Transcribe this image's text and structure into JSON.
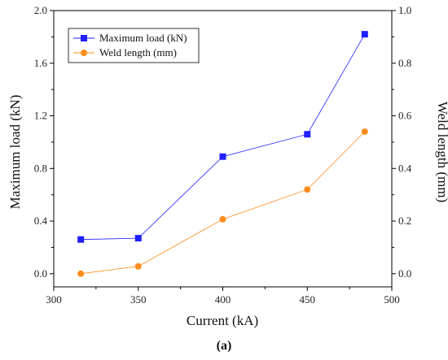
{
  "chart_data": {
    "type": "line",
    "xlabel": "Current (kA)",
    "ylabel_left": "Maximum load (kN)",
    "ylabel_right": "Weld length (mm)",
    "xlim": [
      300,
      500
    ],
    "ylim_left": [
      -0.1,
      2.0
    ],
    "ylim_right": [
      -0.05,
      1.0
    ],
    "x_ticks": [
      300,
      350,
      400,
      450,
      500
    ],
    "x_tick_labels": [
      "300",
      "350",
      "400",
      "450",
      "500"
    ],
    "y_left_ticks": [
      0.0,
      0.4,
      0.8,
      1.2,
      1.6,
      2.0
    ],
    "y_left_tick_labels": [
      "0.0",
      "0.4",
      "0.8",
      "1.2",
      "1.6",
      "2.0"
    ],
    "y_right_ticks": [
      0.0,
      0.2,
      0.4,
      0.6,
      0.8,
      1.0
    ],
    "y_right_tick_labels": [
      "0.0",
      "0.2",
      "0.4",
      "0.6",
      "0.8",
      "1.0"
    ],
    "grid": false,
    "legend_position": "top-left",
    "series": [
      {
        "name": "Maximum load (kN)",
        "axis": "left",
        "color": "#1f1fff",
        "marker": "square",
        "x": [
          316,
          350,
          400,
          450,
          484
        ],
        "y": [
          0.26,
          0.27,
          0.89,
          1.06,
          1.82
        ]
      },
      {
        "name": "Weld length (mm)",
        "axis": "right",
        "color": "#ff8c1a",
        "marker": "circle",
        "x": [
          316,
          350,
          400,
          450,
          484
        ],
        "y": [
          0.0,
          0.028,
          0.207,
          0.32,
          0.54
        ]
      }
    ],
    "caption": "(a)"
  }
}
